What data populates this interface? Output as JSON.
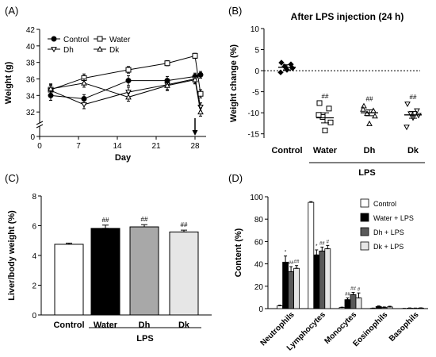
{
  "colors": {
    "ink": "#000000",
    "gray_dark": "#595959",
    "gray_mid": "#a8a8a8",
    "gray_light": "#e6e6e6",
    "white": "#ffffff"
  },
  "chart_data": [
    {
      "panel": "(A)",
      "type": "line",
      "xlabel": "Day",
      "ylabel": "Weight (g)",
      "xlim": [
        0,
        30
      ],
      "ylim": [
        30,
        42
      ],
      "x_ticks": [
        0,
        7,
        14,
        21,
        28
      ],
      "y_ticks": [
        32,
        34,
        36,
        38,
        40,
        42
      ],
      "y_tick_extra": [
        0
      ],
      "arrow_at_x": 28,
      "legend": "top-left",
      "series": [
        {
          "name": "Control",
          "marker": "filled-circle",
          "x": [
            2,
            8,
            16,
            23,
            28,
            29
          ],
          "y": [
            34.0,
            33.6,
            35.8,
            35.8,
            36.3,
            36.5
          ],
          "err": [
            0.6,
            0.5,
            0.6,
            0.5,
            0.4,
            0.4
          ]
        },
        {
          "name": "Water",
          "marker": "open-square",
          "x": [
            2,
            8,
            16,
            23,
            28,
            29
          ],
          "y": [
            34.7,
            36.1,
            37.1,
            37.9,
            38.8,
            34.2
          ],
          "err": [
            0.5,
            0.5,
            0.4,
            0.3,
            0.3,
            0.5
          ]
        },
        {
          "name": "Dh",
          "marker": "open-triangle-down",
          "x": [
            2,
            8,
            16,
            23,
            28,
            29
          ],
          "y": [
            34.6,
            32.9,
            34.4,
            35.3,
            36.0,
            32.6
          ],
          "err": [
            0.7,
            0.5,
            0.6,
            0.6,
            0.5,
            0.5
          ]
        },
        {
          "name": "Dk",
          "marker": "open-triangle-up",
          "x": [
            2,
            8,
            16,
            23,
            28,
            29
          ],
          "y": [
            34.8,
            35.5,
            33.8,
            35.2,
            35.9,
            32.0
          ],
          "err": [
            0.6,
            0.5,
            0.5,
            0.6,
            0.5,
            0.5
          ]
        }
      ]
    },
    {
      "panel": "(B)",
      "type": "scatter",
      "title": "After LPS injection (24 h)",
      "ylabel": "Weight change (%)",
      "ylim": [
        -16,
        10
      ],
      "y_ticks": [
        10,
        5,
        0,
        -5,
        -10,
        -15
      ],
      "categories": [
        "Control",
        "Water",
        "Dh",
        "Dk"
      ],
      "group_label": "LPS",
      "group_span": [
        "Water",
        "Dk"
      ],
      "reference_line_y": 0,
      "groups": [
        {
          "name": "Control",
          "marker": "filled-diamond",
          "mean": 0.8,
          "sem": 0.6,
          "points": [
            1.9,
            1.5,
            1.0,
            0.6,
            0.2,
            -0.4
          ],
          "annotation": ""
        },
        {
          "name": "Water",
          "marker": "open-square",
          "mean": -11.2,
          "sem": 1.2,
          "points": [
            -7.7,
            -9.0,
            -11.0,
            -12.3,
            -14.2,
            -10.5
          ],
          "annotation": "##"
        },
        {
          "name": "Dh",
          "marker": "open-triangle-up",
          "mean": -10.0,
          "sem": 0.7,
          "points": [
            -8.4,
            -9.5,
            -10.2,
            -10.8,
            -12.6,
            -9.2
          ],
          "annotation": "##"
        },
        {
          "name": "Dk",
          "marker": "open-triangle-down",
          "mean": -10.5,
          "sem": 0.8,
          "points": [
            -7.9,
            -9.5,
            -10.2,
            -10.6,
            -11.2,
            -13.4
          ],
          "annotation": "##"
        }
      ]
    },
    {
      "panel": "(C)",
      "type": "bar",
      "ylabel": "Liver/body weight (%)",
      "ylim": [
        0,
        8
      ],
      "y_ticks": [
        0,
        2,
        4,
        6,
        8
      ],
      "categories": [
        "Control",
        "Water",
        "Dh",
        "Dk"
      ],
      "values": [
        4.75,
        5.82,
        5.92,
        5.58
      ],
      "errors": [
        0.08,
        0.22,
        0.15,
        0.12
      ],
      "annotations": [
        "",
        "##",
        "##",
        "##"
      ],
      "bar_colors": [
        "#ffffff",
        "#000000",
        "#a8a8a8",
        "#e6e6e6"
      ],
      "group_label": "LPS",
      "group_span": [
        "Water",
        "Dk"
      ]
    },
    {
      "panel": "(D)",
      "type": "bar",
      "ylabel": "Content (%)",
      "ylim": [
        0,
        100
      ],
      "y_ticks": [
        0,
        20,
        40,
        60,
        80,
        100
      ],
      "categories": [
        "Neutrophils",
        "Lymphocytes",
        "Monocytes",
        "Eosinophils",
        "Basophils"
      ],
      "legend": "top-right",
      "series": [
        {
          "name": "Control",
          "color": "#ffffff",
          "values": [
            2.5,
            95,
            1.0,
            0.3,
            0.1
          ],
          "errors": [
            0.5,
            0.6,
            0.3,
            0.2,
            0.1
          ],
          "annotations": [
            "",
            "",
            "",
            "",
            ""
          ]
        },
        {
          "name": "Water + LPS",
          "color": "#000000",
          "values": [
            41.5,
            48,
            8.0,
            1.8,
            0.4
          ],
          "errors": [
            5.5,
            4.5,
            1.5,
            0.6,
            0.2
          ],
          "annotations": [
            "*",
            "*",
            "##",
            "",
            ""
          ]
        },
        {
          "name": "Dh + LPS",
          "color": "#595959",
          "values": [
            33,
            51.5,
            12.5,
            1.0,
            0.3
          ],
          "errors": [
            4.5,
            3.5,
            2.0,
            0.5,
            0.2
          ],
          "annotations": [
            "##",
            "##",
            "##",
            "",
            ""
          ]
        },
        {
          "name": "Dk + LPS",
          "color": "#e6e6e6",
          "values": [
            36,
            53.5,
            9.5,
            1.5,
            0.5
          ],
          "errors": [
            2.5,
            3.0,
            4.5,
            0.6,
            0.2
          ],
          "annotations": [
            "##",
            "#",
            "#",
            "",
            ""
          ]
        }
      ]
    }
  ]
}
